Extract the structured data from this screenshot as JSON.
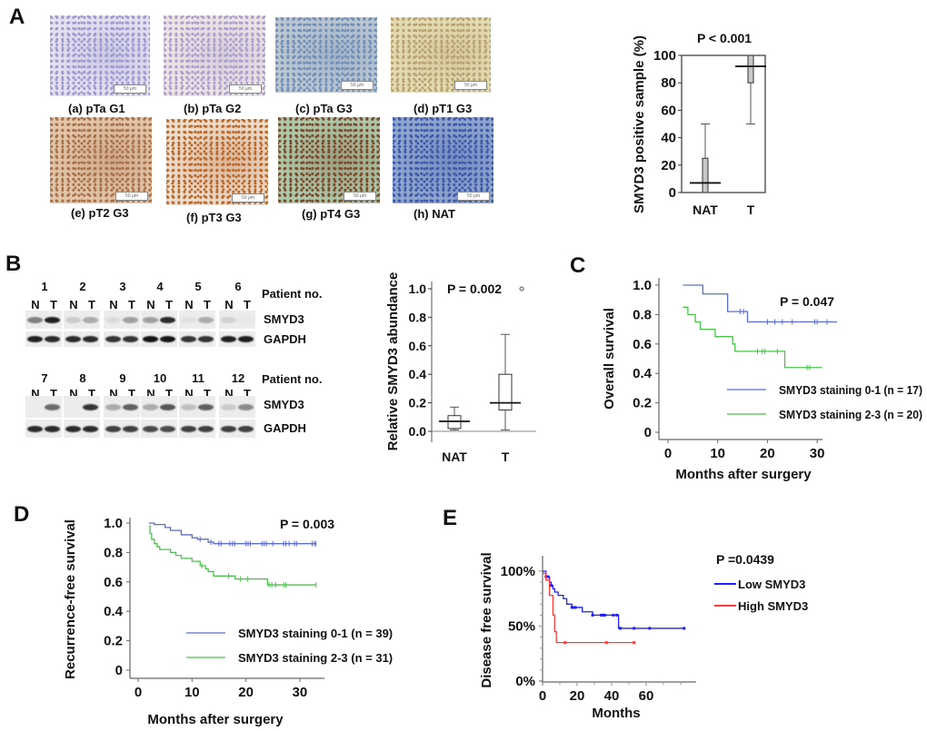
{
  "panel_labels": {
    "A": "A",
    "B": "B",
    "C": "C",
    "D": "D",
    "E": "E"
  },
  "histology": {
    "scale_bar_text": "50 µm",
    "images": [
      {
        "caption": "(a) pTa G1",
        "stain": "#e6e0ee",
        "cell": "#9a9ad0"
      },
      {
        "caption": "(b) pTa G2",
        "stain": "#efe3e2",
        "cell": "#a8a0cc"
      },
      {
        "caption": "(c) pTa G3",
        "stain": "#bcc6d0",
        "cell": "#6f8fb8"
      },
      {
        "caption": "(d) pT1 G3",
        "stain": "#e2dcb2",
        "cell": "#b8a070"
      },
      {
        "caption": "(e) pT2 G3",
        "stain": "#e2c6aa",
        "cell": "#a9714a"
      },
      {
        "caption": "(f) pT3 G3",
        "stain": "#ecdccc",
        "cell": "#b8692e"
      },
      {
        "caption": "(g) pT4 G3",
        "stain": "#a9c9ac",
        "cell": "#7a4a2a"
      },
      {
        "caption": "(h) NAT",
        "stain": "#8fa6cc",
        "cell": "#3f58a8"
      }
    ]
  },
  "blots": {
    "patient_label": "Patient no.",
    "lane_labels": [
      "N",
      "T"
    ],
    "row_labels": [
      "SMYD3",
      "GAPDH"
    ],
    "rows": [
      {
        "patients": [
          {
            "no": "1",
            "smyd3": [
              0.5,
              0.95
            ],
            "gapdh": [
              0.95,
              0.9
            ]
          },
          {
            "no": "2",
            "smyd3": [
              0.15,
              0.3
            ],
            "gapdh": [
              0.9,
              0.9
            ]
          },
          {
            "no": "3",
            "smyd3": [
              0.08,
              0.35
            ],
            "gapdh": [
              0.85,
              0.85
            ]
          },
          {
            "no": "4",
            "smyd3": [
              0.35,
              0.9
            ],
            "gapdh": [
              1.0,
              1.0
            ]
          },
          {
            "no": "5",
            "smyd3": [
              0.05,
              0.3
            ],
            "gapdh": [
              0.85,
              0.85
            ]
          },
          {
            "no": "6",
            "smyd3": [
              0.12,
              0.02
            ],
            "gapdh": [
              0.95,
              0.95
            ]
          }
        ]
      },
      {
        "patients": [
          {
            "no": "7",
            "smyd3": [
              0.0,
              0.6
            ],
            "gapdh": [
              0.9,
              0.9
            ]
          },
          {
            "no": "8",
            "smyd3": [
              0.0,
              0.85
            ],
            "gapdh": [
              0.9,
              0.9
            ]
          },
          {
            "no": "9",
            "smyd3": [
              0.3,
              0.65
            ],
            "gapdh": [
              0.8,
              0.8
            ]
          },
          {
            "no": "10",
            "smyd3": [
              0.3,
              0.7
            ],
            "gapdh": [
              0.75,
              0.75
            ]
          },
          {
            "no": "11",
            "smyd3": [
              0.2,
              0.65
            ],
            "gapdh": [
              0.8,
              0.8
            ]
          },
          {
            "no": "12",
            "smyd3": [
              0.15,
              0.45
            ],
            "gapdh": [
              0.8,
              0.8
            ]
          }
        ]
      }
    ]
  },
  "chart_data": [
    {
      "id": "A-box",
      "type": "box",
      "title": "P < 0.001",
      "xlabel": "",
      "ylabel": "SMYD3 positive sample (%)",
      "ylim": [
        0,
        100
      ],
      "yticks": [
        0,
        20,
        40,
        60,
        80,
        100
      ],
      "ytick_labels": [
        "0",
        "20",
        "40",
        "60",
        "80",
        "100"
      ],
      "categories": [
        "NAT",
        "T"
      ],
      "boxes": [
        {
          "min": 0,
          "q1": 0,
          "median": 7,
          "q3": 25,
          "max": 50
        },
        {
          "min": 50,
          "q1": 80,
          "median": 92,
          "q3": 100,
          "max": 100
        }
      ],
      "box_fill": "#c8c8c8"
    },
    {
      "id": "B-box",
      "type": "box",
      "title": "P = 0.002",
      "xlabel": "",
      "ylabel": "Relative  SMYD3 abundance",
      "ylim": [
        0,
        1.0
      ],
      "yticks": [
        0,
        0.2,
        0.4,
        0.6,
        0.8,
        1.0
      ],
      "ytick_labels": [
        "0.0",
        "0.2",
        "0.4",
        "0.6",
        "0.8",
        "1.0"
      ],
      "categories": [
        "NAT",
        "T"
      ],
      "boxes": [
        {
          "min": 0.01,
          "q1": 0.02,
          "median": 0.07,
          "q3": 0.11,
          "max": 0.17,
          "outliers": []
        },
        {
          "min": 0.01,
          "q1": 0.15,
          "median": 0.2,
          "q3": 0.4,
          "max": 0.68,
          "outliers": [
            1.0
          ]
        }
      ],
      "box_fill": "#ffffff"
    },
    {
      "id": "C-km",
      "type": "line",
      "title": "P = 0.047",
      "xlabel": "Months after surgery",
      "ylabel": "Overall survival",
      "xlim": [
        0,
        34
      ],
      "ylim": [
        0,
        1.0
      ],
      "xticks": [
        0,
        10,
        20,
        30
      ],
      "xtick_labels": [
        "0",
        "10",
        "20",
        "30"
      ],
      "yticks": [
        0,
        0.2,
        0.4,
        0.6,
        0.8,
        1.0
      ],
      "ytick_labels": [
        "0",
        "0.2",
        "0.4",
        "0.6",
        "0.8",
        "1.0"
      ],
      "series": [
        {
          "name": "SMYD3 staining 0-1 (n = 17)",
          "color": "#5a6ecb",
          "steps": [
            [
              3,
              1.0
            ],
            [
              7,
              0.94
            ],
            [
              12,
              0.82
            ],
            [
              16,
              0.75
            ]
          ],
          "end": 34,
          "censored": [
            14.5,
            15.2,
            20,
            21.5,
            23,
            25,
            29.5,
            30,
            32
          ]
        },
        {
          "name": "SMYD3 staining 2-3 (n = 20)",
          "color": "#4cc24c",
          "steps": [
            [
              3,
              0.85
            ],
            [
              4,
              0.8
            ],
            [
              5.5,
              0.75
            ],
            [
              6.5,
              0.7
            ],
            [
              9.5,
              0.65
            ],
            [
              13,
              0.6
            ],
            [
              13.5,
              0.55
            ],
            [
              23.5,
              0.44
            ]
          ],
          "end": 31,
          "censored": [
            18,
            19,
            19.5,
            22,
            28,
            28.5
          ]
        }
      ]
    },
    {
      "id": "D-km",
      "type": "line",
      "title": "P = 0.003",
      "xlabel": "Months after surgery",
      "ylabel": "Recurrence-free survival",
      "xlim": [
        0,
        33
      ],
      "ylim": [
        0,
        1.0
      ],
      "xticks": [
        0,
        10,
        20,
        30
      ],
      "xtick_labels": [
        "0",
        "10",
        "20",
        "30"
      ],
      "yticks": [
        0,
        0.2,
        0.4,
        0.6,
        0.8,
        1.0
      ],
      "ytick_labels": [
        "0",
        "0.2",
        "0.4",
        "0.6",
        "0.8",
        "1.0"
      ],
      "series": [
        {
          "name": "SMYD3 staining 0-1 (n = 39)",
          "color": "#5a6ecb",
          "steps": [
            [
              2,
              1.0
            ],
            [
              3,
              0.99
            ],
            [
              5,
              0.97
            ],
            [
              6,
              0.95
            ],
            [
              8,
              0.92
            ],
            [
              10,
              0.9
            ],
            [
              11,
              0.89
            ],
            [
              13,
              0.87
            ],
            [
              14,
              0.86
            ]
          ],
          "end": 33,
          "censored": [
            11.5,
            13.5,
            15,
            15.4,
            17,
            17.5,
            17.9,
            20,
            20.4,
            20.8,
            23,
            23.4,
            23.8,
            25,
            27,
            27.4,
            28,
            29,
            29.4,
            32.3,
            32.7,
            33
          ]
        },
        {
          "name": "SMYD3 staining 2-3 (n = 31)",
          "color": "#4cc24c",
          "steps": [
            [
              2,
              0.98
            ],
            [
              2.2,
              0.93
            ],
            [
              2.5,
              0.89
            ],
            [
              3,
              0.86
            ],
            [
              3.5,
              0.84
            ],
            [
              4,
              0.82
            ],
            [
              6,
              0.8
            ],
            [
              7,
              0.78
            ],
            [
              8,
              0.76
            ],
            [
              10,
              0.74
            ],
            [
              11.5,
              0.71
            ],
            [
              12.5,
              0.69
            ],
            [
              13,
              0.67
            ],
            [
              14,
              0.64
            ],
            [
              18,
              0.62
            ],
            [
              24,
              0.58
            ]
          ],
          "end": 33,
          "censored": [
            11.8,
            16.8,
            19,
            20.3,
            24.3,
            24.8,
            25.5,
            27,
            27.4,
            33
          ]
        }
      ]
    },
    {
      "id": "E-km",
      "type": "line",
      "title": "P =0.0439",
      "xlabel": "Months",
      "ylabel": "Disease free survival",
      "xlim": [
        0,
        88
      ],
      "ylim": [
        0,
        1.0
      ],
      "xticks": [
        0,
        20,
        40,
        60
      ],
      "xtick_labels": [
        "0",
        "20",
        "40",
        "60"
      ],
      "yticks": [
        0,
        0.5,
        1.0
      ],
      "ytick_labels": [
        "0%",
        "50%",
        "100%"
      ],
      "series": [
        {
          "name": "Low SMYD3",
          "color": "#1f1fff",
          "steps": [
            [
              0,
              1.0
            ],
            [
              2,
              0.95
            ],
            [
              4,
              0.9
            ],
            [
              5,
              0.87
            ],
            [
              6,
              0.84
            ],
            [
              7,
              0.81
            ],
            [
              9,
              0.78
            ],
            [
              12,
              0.75
            ],
            [
              14,
              0.7
            ],
            [
              17,
              0.67
            ],
            [
              23,
              0.63
            ],
            [
              29,
              0.6
            ],
            [
              44,
              0.48
            ]
          ],
          "end": 82,
          "censored": [
            2,
            3,
            5,
            17,
            18,
            19,
            29,
            34,
            35,
            36,
            41,
            43,
            45,
            53,
            62,
            82
          ]
        },
        {
          "name": "High SMYD3",
          "color": "#ff3b3b",
          "steps": [
            [
              0,
              0.98
            ],
            [
              2,
              0.92
            ],
            [
              4,
              0.78
            ],
            [
              6,
              0.6
            ],
            [
              7,
              0.45
            ],
            [
              8,
              0.35
            ]
          ],
          "end": 53,
          "censored": [
            13,
            37,
            53
          ]
        }
      ]
    }
  ]
}
